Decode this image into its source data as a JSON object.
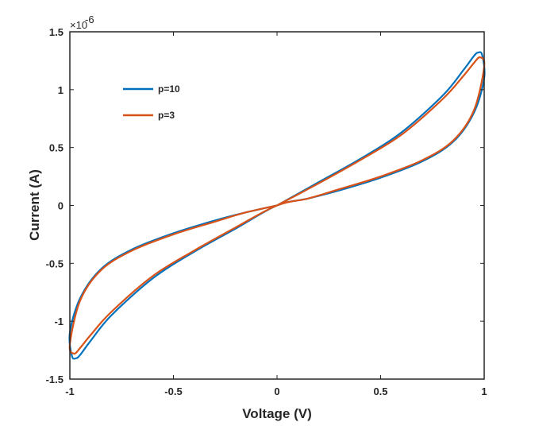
{
  "chart_data": {
    "type": "line",
    "xlabel": "Voltage (V)",
    "ylabel": "Current (A)",
    "xlim": [
      -1,
      1
    ],
    "ylim": [
      -1.5,
      1.5
    ],
    "y_multiplier": {
      "base": "×10",
      "exponent": "-6"
    },
    "x_ticks": [
      -1,
      -0.5,
      0,
      0.5,
      1
    ],
    "x_tick_labels": [
      "-1",
      "-0.5",
      "0",
      "0.5",
      "1"
    ],
    "y_ticks": [
      -1.5,
      -1,
      -0.5,
      0,
      0.5,
      1,
      1.5
    ],
    "y_tick_labels": [
      "-1.5",
      "-1",
      "-0.5",
      "0",
      "0.5",
      "1",
      "1.5"
    ],
    "grid": false,
    "legend_position": "top-left",
    "series": [
      {
        "name": "p=10",
        "color": "#0072BD",
        "x": [
          0,
          0.2,
          0.4,
          0.6,
          0.8,
          0.9,
          0.95,
          0.97,
          0.99,
          1.0,
          0.95,
          0.85,
          0.7,
          0.5,
          0.3,
          0.15,
          0,
          -0.2,
          -0.4,
          -0.6,
          -0.8,
          -0.9,
          -0.95,
          -0.97,
          -0.99,
          -1.0,
          -0.95,
          -0.85,
          -0.7,
          -0.5,
          -0.3,
          -0.15,
          0
        ],
        "y": [
          0,
          0.2,
          0.4,
          0.63,
          0.95,
          1.17,
          1.29,
          1.32,
          1.3,
          1.1,
          0.8,
          0.55,
          0.38,
          0.24,
          0.13,
          0.06,
          0,
          -0.2,
          -0.4,
          -0.63,
          -0.95,
          -1.17,
          -1.29,
          -1.32,
          -1.3,
          -1.1,
          -0.8,
          -0.55,
          -0.38,
          -0.24,
          -0.13,
          -0.06,
          0
        ]
      },
      {
        "name": "p=3",
        "color": "#D95319",
        "x": [
          0,
          0.2,
          0.4,
          0.6,
          0.8,
          0.9,
          0.95,
          0.98,
          1.0,
          0.95,
          0.85,
          0.7,
          0.5,
          0.3,
          0.15,
          0,
          -0.2,
          -0.4,
          -0.6,
          -0.8,
          -0.9,
          -0.95,
          -0.98,
          -1.0,
          -0.95,
          -0.85,
          -0.7,
          -0.5,
          -0.3,
          -0.15,
          0
        ],
        "y": [
          0,
          0.19,
          0.39,
          0.61,
          0.92,
          1.12,
          1.23,
          1.28,
          1.2,
          0.82,
          0.56,
          0.39,
          0.25,
          0.14,
          0.06,
          0,
          -0.19,
          -0.39,
          -0.61,
          -0.92,
          -1.12,
          -1.23,
          -1.28,
          -1.2,
          -0.82,
          -0.56,
          -0.39,
          -0.25,
          -0.14,
          -0.06,
          0
        ]
      }
    ]
  }
}
